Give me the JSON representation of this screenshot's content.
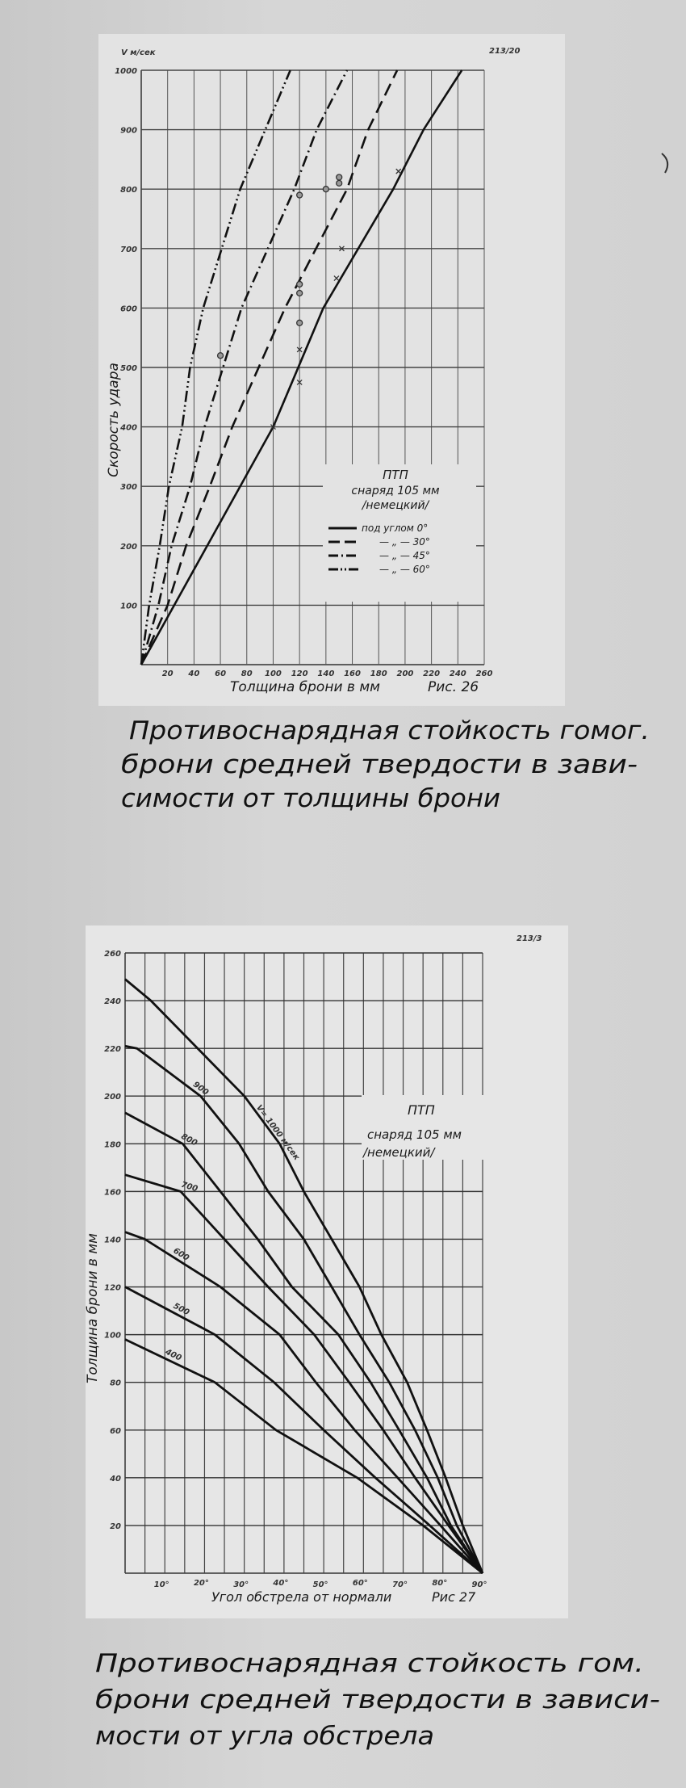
{
  "captions": {
    "fig26": [
      "Противоснарядная стойкость гомог.",
      "брони средней твердости в зави-",
      "симости от толщины брони"
    ],
    "fig27": [
      "Противоснарядная стойкость гом.",
      "брони средней  твердости в зависи-",
      "мости от угла обстрела"
    ]
  },
  "chart_data": [
    {
      "type": "line",
      "figure_label": "Рис. 26",
      "sheet_number": "213/20",
      "ylabel": "Скорость удара",
      "yunit": "V м/сек",
      "xlabel": "Толщина брони в мм",
      "xlim": [
        0,
        260
      ],
      "ylim": [
        0,
        1000
      ],
      "x_ticks": [
        20,
        40,
        60,
        80,
        100,
        120,
        140,
        160,
        180,
        200,
        220,
        240,
        260
      ],
      "y_ticks": [
        100,
        200,
        300,
        400,
        500,
        600,
        700,
        800,
        900,
        1000
      ],
      "grid": true,
      "legend": {
        "placement": "center-right",
        "title": [
          "ПТП",
          "снаряд 105 мм",
          "/немецкий/"
        ],
        "entries": [
          "под углом 0°",
          "— „ — 30°",
          "— „ — 45°",
          "— „ — 60°"
        ]
      },
      "series": [
        {
          "name": "под углом 0°",
          "style": "solid",
          "x": [
            0,
            100,
            138,
            191,
            214,
            243
          ],
          "y": [
            0,
            400,
            600,
            800,
            900,
            1000
          ]
        },
        {
          "name": "30°",
          "style": "dashed",
          "x": [
            0,
            20,
            34,
            52,
            69,
            109,
            156,
            172,
            194
          ],
          "y": [
            0,
            100,
            200,
            300,
            400,
            600,
            800,
            900,
            1000
          ]
        },
        {
          "name": "45°",
          "style": "dash-dot",
          "x": [
            0,
            13,
            23,
            37,
            48,
            76,
            116,
            133,
            156
          ],
          "y": [
            0,
            100,
            200,
            300,
            400,
            600,
            800,
            900,
            1000
          ]
        },
        {
          "name": "60°",
          "style": "dash-dot-dot",
          "x": [
            0,
            6,
            14,
            21,
            31,
            37,
            47,
            75,
            94,
            113
          ],
          "y": [
            0,
            100,
            200,
            300,
            400,
            500,
            600,
            800,
            900,
            1000
          ]
        }
      ],
      "markers": {
        "circles": [
          [
            60,
            520
          ],
          [
            120,
            575
          ],
          [
            120,
            625
          ],
          [
            120,
            640
          ],
          [
            140,
            800
          ],
          [
            150,
            810
          ],
          [
            150,
            820
          ],
          [
            120,
            790
          ]
        ],
        "crosses": [
          [
            100,
            400
          ],
          [
            120,
            475
          ],
          [
            120,
            530
          ],
          [
            148,
            650
          ],
          [
            152,
            700
          ],
          [
            195,
            830
          ]
        ]
      }
    },
    {
      "type": "line",
      "figure_label": "Рис 27",
      "sheet_number": "213/3",
      "ylabel": "Толщина брони в мм",
      "xlabel": "Угол обстрела от нормали",
      "xlim": [
        0,
        90
      ],
      "ylim": [
        0,
        260
      ],
      "x_ticks": [
        "10°",
        "20°",
        "30°",
        "40°",
        "50°",
        "60°",
        "70°",
        "80°",
        "90°"
      ],
      "y_ticks": [
        20,
        40,
        60,
        80,
        100,
        120,
        140,
        160,
        180,
        200,
        220,
        240,
        260
      ],
      "grid": true,
      "annotation": [
        "ПТП",
        "снаряд 105 мм",
        "/немецкий/"
      ],
      "series": [
        {
          "name": "V= 1000 м/сек",
          "x": [
            0,
            6.5,
            30,
            38.9,
            45,
            52,
            59,
            64.5,
            71,
            76,
            80.7,
            85,
            90
          ],
          "y": [
            249,
            240,
            200,
            180,
            160,
            140,
            120,
            100,
            80,
            60,
            40,
            20,
            0
          ]
        },
        {
          "name": "900",
          "x": [
            0,
            3,
            19,
            28.7,
            36,
            45,
            52,
            59,
            66.5,
            73,
            78.7,
            83.5,
            90
          ],
          "y": [
            221,
            220,
            200,
            180,
            160,
            140,
            120,
            100,
            80,
            60,
            40,
            20,
            0
          ]
        },
        {
          "name": "800",
          "x": [
            0,
            14.5,
            24,
            33.4,
            42,
            53.7,
            61.8,
            69,
            76,
            82,
            90
          ],
          "y": [
            193,
            180,
            160,
            140,
            120,
            100,
            80,
            60,
            40,
            20,
            0
          ]
        },
        {
          "name": "700",
          "x": [
            0,
            14,
            25,
            36,
            47.6,
            56.4,
            65,
            73,
            81.4,
            90
          ],
          "y": [
            167,
            160,
            140,
            120,
            100,
            80,
            60,
            40,
            20,
            0
          ]
        },
        {
          "name": "600",
          "x": [
            0,
            5,
            24,
            38.9,
            48,
            57.8,
            68.6,
            79.4,
            90
          ],
          "y": [
            143,
            140,
            120,
            100,
            80,
            60,
            40,
            20,
            0
          ]
        },
        {
          "name": "500",
          "x": [
            0,
            22.6,
            37.5,
            50,
            63,
            76.7,
            90
          ],
          "y": [
            120,
            100,
            80,
            60,
            40,
            20,
            0
          ]
        },
        {
          "name": "400",
          "x": [
            0,
            22.6,
            38,
            58.4,
            75,
            90
          ],
          "y": [
            98,
            80,
            60,
            40,
            20,
            0
          ]
        }
      ]
    }
  ]
}
